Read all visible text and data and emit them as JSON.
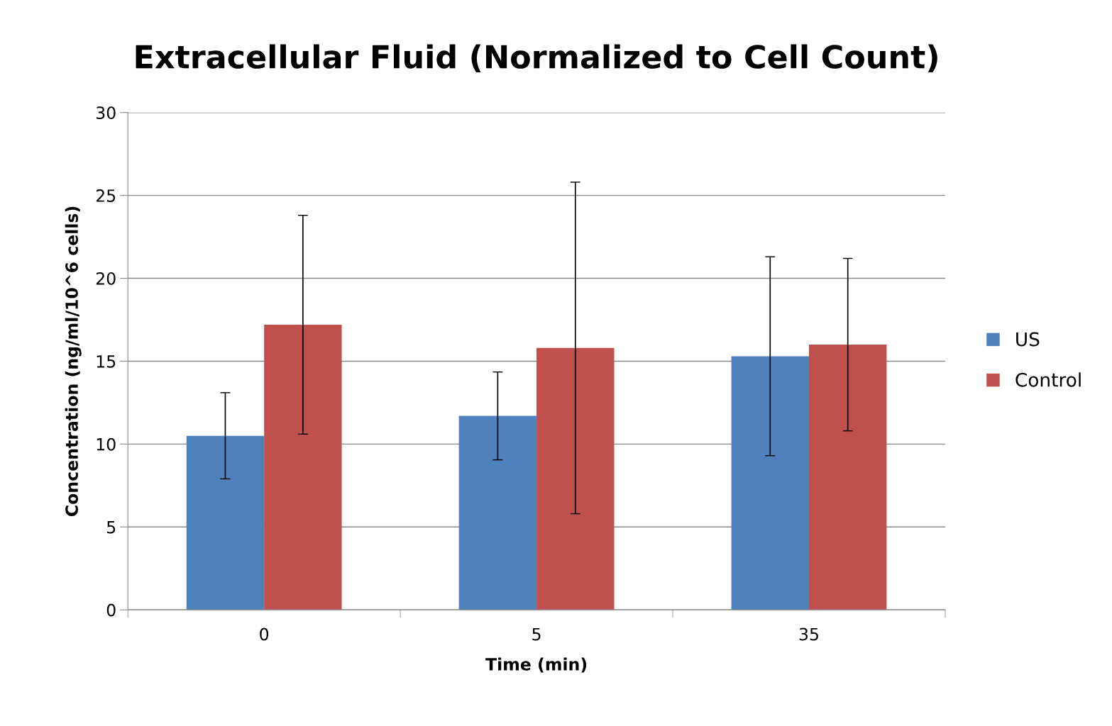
{
  "chart_data": {
    "type": "bar",
    "title": "Extracellular Fluid (Normalized to Cell Count)",
    "xlabel": "Time (min)",
    "ylabel": "Concentration (ng/ml/10^6 cells)",
    "categories": [
      "0",
      "5",
      "35"
    ],
    "series": [
      {
        "name": "US",
        "color": "#4f81bd",
        "values": [
          10.5,
          11.7,
          15.3
        ],
        "errors": [
          2.6,
          2.65,
          6.0
        ]
      },
      {
        "name": "Control",
        "color": "#c0504d",
        "values": [
          17.2,
          15.8,
          16.0
        ],
        "errors": [
          6.6,
          10.0,
          5.2
        ]
      }
    ],
    "ylim": [
      0,
      30
    ],
    "yticks": [
      0,
      5,
      10,
      15,
      20,
      25,
      30
    ],
    "grid": "y",
    "legend": "right"
  }
}
